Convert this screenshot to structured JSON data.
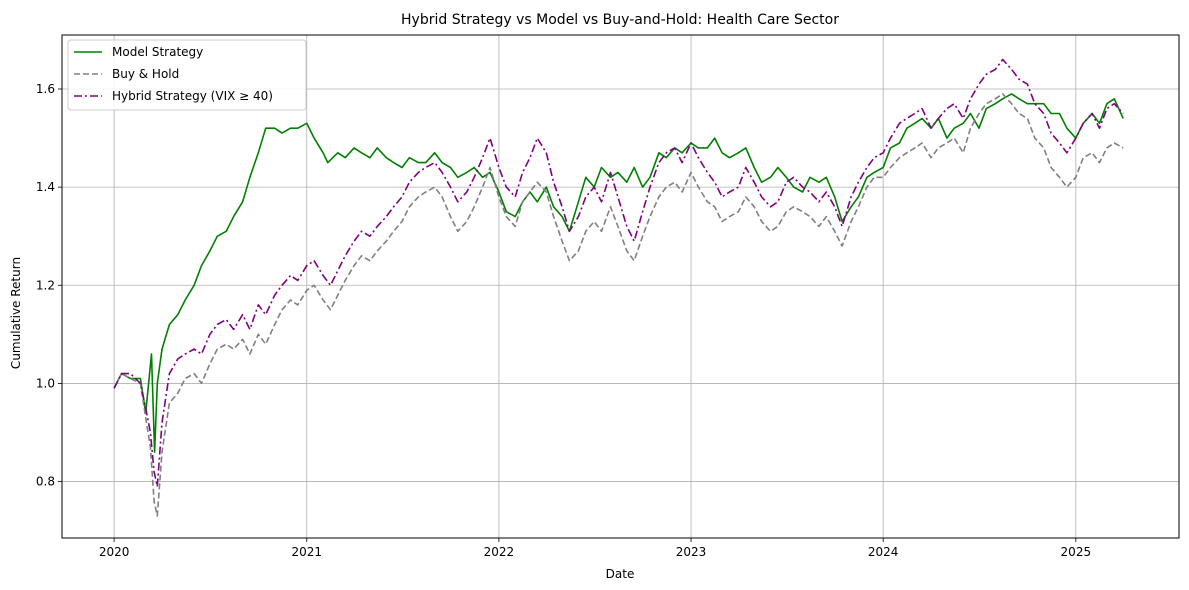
{
  "chart_data": {
    "type": "line",
    "title": "Hybrid Strategy vs Model vs Buy-and-Hold: Health Care Sector",
    "xlabel": "Date",
    "ylabel": "Cumulative Return",
    "x_type": "date",
    "xlim": [
      "2019-09-24",
      "2025-07-16"
    ],
    "ylim": [
      0.685,
      1.71
    ],
    "xticks": [
      "2020",
      "2021",
      "2022",
      "2023",
      "2024",
      "2025"
    ],
    "xtick_dates": [
      "2020-01-01",
      "2021-01-01",
      "2022-01-01",
      "2023-01-01",
      "2024-01-01",
      "2025-01-01"
    ],
    "yticks": [
      0.8,
      1.0,
      1.2,
      1.4,
      1.6
    ],
    "ytick_labels": [
      "0.8",
      "1.0",
      "1.2",
      "1.4",
      "1.6"
    ],
    "grid": true,
    "legend_position": "upper-left",
    "series": [
      {
        "name": "Model Strategy",
        "color": "#008000",
        "dash": "solid",
        "x": [
          "2020-01-01",
          "2020-01-15",
          "2020-02-01",
          "2020-02-20",
          "2020-03-01",
          "2020-03-12",
          "2020-03-18",
          "2020-03-23",
          "2020-04-01",
          "2020-04-15",
          "2020-05-01",
          "2020-05-15",
          "2020-06-01",
          "2020-06-15",
          "2020-07-01",
          "2020-07-15",
          "2020-08-01",
          "2020-08-15",
          "2020-09-01",
          "2020-09-15",
          "2020-10-01",
          "2020-10-15",
          "2020-11-01",
          "2020-11-15",
          "2020-12-01",
          "2020-12-15",
          "2021-01-01",
          "2021-01-15",
          "2021-02-01",
          "2021-02-10",
          "2021-03-01",
          "2021-03-15",
          "2021-04-01",
          "2021-04-15",
          "2021-05-01",
          "2021-05-15",
          "2021-06-01",
          "2021-06-15",
          "2021-07-01",
          "2021-07-15",
          "2021-08-01",
          "2021-08-15",
          "2021-09-01",
          "2021-09-15",
          "2021-10-01",
          "2021-10-15",
          "2021-11-01",
          "2021-11-15",
          "2021-12-01",
          "2021-12-15",
          "2022-01-01",
          "2022-01-15",
          "2022-02-01",
          "2022-02-15",
          "2022-03-01",
          "2022-03-15",
          "2022-04-01",
          "2022-04-15",
          "2022-05-01",
          "2022-05-15",
          "2022-06-01",
          "2022-06-15",
          "2022-07-01",
          "2022-07-15",
          "2022-08-01",
          "2022-08-15",
          "2022-09-01",
          "2022-09-15",
          "2022-10-01",
          "2022-10-15",
          "2022-11-01",
          "2022-11-15",
          "2022-12-01",
          "2022-12-15",
          "2023-01-01",
          "2023-01-15",
          "2023-02-01",
          "2023-02-15",
          "2023-03-01",
          "2023-03-15",
          "2023-04-01",
          "2023-04-15",
          "2023-05-01",
          "2023-05-15",
          "2023-06-01",
          "2023-06-15",
          "2023-07-01",
          "2023-07-15",
          "2023-08-01",
          "2023-08-15",
          "2023-09-01",
          "2023-09-15",
          "2023-10-01",
          "2023-10-15",
          "2023-11-01",
          "2023-11-15",
          "2023-12-01",
          "2023-12-15",
          "2024-01-01",
          "2024-01-15",
          "2024-02-01",
          "2024-02-15",
          "2024-03-01",
          "2024-03-15",
          "2024-04-01",
          "2024-04-15",
          "2024-05-01",
          "2024-05-15",
          "2024-06-01",
          "2024-06-15",
          "2024-07-01",
          "2024-07-15",
          "2024-08-01",
          "2024-08-15",
          "2024-09-01",
          "2024-09-15",
          "2024-10-01",
          "2024-10-15",
          "2024-11-01",
          "2024-11-15",
          "2024-12-01",
          "2024-12-15",
          "2025-01-01",
          "2025-01-15",
          "2025-02-01",
          "2025-02-15",
          "2025-03-01",
          "2025-03-15",
          "2025-04-01"
        ],
        "y": [
          0.99,
          1.02,
          1.01,
          1.01,
          0.94,
          1.06,
          0.86,
          1.0,
          1.07,
          1.12,
          1.14,
          1.17,
          1.2,
          1.24,
          1.27,
          1.3,
          1.31,
          1.34,
          1.37,
          1.42,
          1.47,
          1.52,
          1.52,
          1.51,
          1.52,
          1.52,
          1.53,
          1.5,
          1.47,
          1.45,
          1.47,
          1.46,
          1.48,
          1.47,
          1.46,
          1.48,
          1.46,
          1.45,
          1.44,
          1.46,
          1.45,
          1.45,
          1.47,
          1.45,
          1.44,
          1.42,
          1.43,
          1.44,
          1.42,
          1.43,
          1.39,
          1.35,
          1.34,
          1.37,
          1.39,
          1.37,
          1.4,
          1.36,
          1.34,
          1.31,
          1.37,
          1.42,
          1.4,
          1.44,
          1.42,
          1.43,
          1.41,
          1.44,
          1.4,
          1.42,
          1.47,
          1.46,
          1.48,
          1.47,
          1.49,
          1.48,
          1.48,
          1.5,
          1.47,
          1.46,
          1.47,
          1.48,
          1.44,
          1.41,
          1.42,
          1.44,
          1.42,
          1.4,
          1.39,
          1.42,
          1.41,
          1.42,
          1.38,
          1.33,
          1.36,
          1.38,
          1.42,
          1.43,
          1.44,
          1.48,
          1.49,
          1.52,
          1.53,
          1.54,
          1.52,
          1.54,
          1.5,
          1.52,
          1.53,
          1.55,
          1.52,
          1.56,
          1.57,
          1.58,
          1.59,
          1.58,
          1.57,
          1.57,
          1.57,
          1.55,
          1.55,
          1.52,
          1.5,
          1.53,
          1.55,
          1.53,
          1.57,
          1.58,
          1.54
        ]
      },
      {
        "name": "Buy & Hold",
        "color": "#808080",
        "dash": "dashed",
        "x": [
          "2020-01-01",
          "2020-01-15",
          "2020-02-01",
          "2020-02-20",
          "2020-03-01",
          "2020-03-10",
          "2020-03-17",
          "2020-03-23",
          "2020-04-01",
          "2020-04-15",
          "2020-05-01",
          "2020-05-15",
          "2020-06-01",
          "2020-06-15",
          "2020-07-01",
          "2020-07-15",
          "2020-08-01",
          "2020-08-15",
          "2020-09-01",
          "2020-09-15",
          "2020-10-01",
          "2020-10-15",
          "2020-11-01",
          "2020-11-15",
          "2020-12-01",
          "2020-12-15",
          "2021-01-01",
          "2021-01-15",
          "2021-02-01",
          "2021-02-15",
          "2021-03-01",
          "2021-03-15",
          "2021-04-01",
          "2021-04-15",
          "2021-05-01",
          "2021-05-15",
          "2021-06-01",
          "2021-06-15",
          "2021-07-01",
          "2021-07-15",
          "2021-08-01",
          "2021-08-15",
          "2021-09-01",
          "2021-09-15",
          "2021-10-01",
          "2021-10-15",
          "2021-11-01",
          "2021-11-15",
          "2021-12-01",
          "2021-12-15",
          "2022-01-01",
          "2022-01-15",
          "2022-02-01",
          "2022-02-15",
          "2022-03-01",
          "2022-03-15",
          "2022-04-01",
          "2022-04-15",
          "2022-05-01",
          "2022-05-15",
          "2022-06-01",
          "2022-06-15",
          "2022-07-01",
          "2022-07-15",
          "2022-08-01",
          "2022-08-15",
          "2022-09-01",
          "2022-09-15",
          "2022-10-01",
          "2022-10-15",
          "2022-11-01",
          "2022-11-15",
          "2022-12-01",
          "2022-12-15",
          "2023-01-01",
          "2023-01-15",
          "2023-02-01",
          "2023-02-15",
          "2023-03-01",
          "2023-03-15",
          "2023-04-01",
          "2023-04-15",
          "2023-05-01",
          "2023-05-15",
          "2023-06-01",
          "2023-06-15",
          "2023-07-01",
          "2023-07-15",
          "2023-08-01",
          "2023-08-15",
          "2023-09-01",
          "2023-09-15",
          "2023-10-01",
          "2023-10-15",
          "2023-11-01",
          "2023-11-15",
          "2023-12-01",
          "2023-12-15",
          "2024-01-01",
          "2024-01-15",
          "2024-02-01",
          "2024-02-15",
          "2024-03-01",
          "2024-03-15",
          "2024-04-01",
          "2024-04-15",
          "2024-05-01",
          "2024-05-15",
          "2024-06-01",
          "2024-06-15",
          "2024-07-01",
          "2024-07-15",
          "2024-08-01",
          "2024-08-15",
          "2024-09-01",
          "2024-09-15",
          "2024-10-01",
          "2024-10-15",
          "2024-11-01",
          "2024-11-15",
          "2024-12-01",
          "2024-12-15",
          "2025-01-01",
          "2025-01-15",
          "2025-02-01",
          "2025-02-15",
          "2025-03-01",
          "2025-03-15",
          "2025-04-01"
        ],
        "y": [
          0.99,
          1.02,
          1.01,
          1.0,
          0.93,
          0.87,
          0.76,
          0.73,
          0.86,
          0.96,
          0.98,
          1.01,
          1.02,
          1.0,
          1.04,
          1.07,
          1.08,
          1.07,
          1.09,
          1.06,
          1.1,
          1.08,
          1.12,
          1.15,
          1.17,
          1.16,
          1.19,
          1.2,
          1.17,
          1.15,
          1.18,
          1.21,
          1.24,
          1.26,
          1.25,
          1.27,
          1.29,
          1.31,
          1.33,
          1.36,
          1.38,
          1.39,
          1.4,
          1.38,
          1.34,
          1.31,
          1.33,
          1.36,
          1.4,
          1.44,
          1.38,
          1.34,
          1.32,
          1.37,
          1.39,
          1.41,
          1.39,
          1.34,
          1.29,
          1.25,
          1.27,
          1.31,
          1.33,
          1.31,
          1.36,
          1.32,
          1.27,
          1.25,
          1.3,
          1.34,
          1.38,
          1.4,
          1.41,
          1.39,
          1.43,
          1.4,
          1.37,
          1.36,
          1.33,
          1.34,
          1.35,
          1.38,
          1.36,
          1.33,
          1.31,
          1.32,
          1.35,
          1.36,
          1.35,
          1.34,
          1.32,
          1.34,
          1.31,
          1.28,
          1.33,
          1.36,
          1.4,
          1.42,
          1.42,
          1.44,
          1.46,
          1.47,
          1.48,
          1.49,
          1.46,
          1.48,
          1.49,
          1.5,
          1.47,
          1.52,
          1.55,
          1.57,
          1.58,
          1.59,
          1.57,
          1.55,
          1.54,
          1.5,
          1.48,
          1.44,
          1.42,
          1.4,
          1.42,
          1.46,
          1.47,
          1.45,
          1.48,
          1.49,
          1.48
        ]
      },
      {
        "name": "Hybrid Strategy (VIX ≥ 40)",
        "color": "#800080",
        "dash": "dashdot",
        "x": [
          "2020-01-01",
          "2020-01-15",
          "2020-02-01",
          "2020-02-20",
          "2020-03-01",
          "2020-03-10",
          "2020-03-17",
          "2020-03-23",
          "2020-04-01",
          "2020-04-15",
          "2020-05-01",
          "2020-05-15",
          "2020-06-01",
          "2020-06-15",
          "2020-07-01",
          "2020-07-15",
          "2020-08-01",
          "2020-08-15",
          "2020-09-01",
          "2020-09-15",
          "2020-10-01",
          "2020-10-15",
          "2020-11-01",
          "2020-11-15",
          "2020-12-01",
          "2020-12-15",
          "2021-01-01",
          "2021-01-15",
          "2021-02-01",
          "2021-02-15",
          "2021-03-01",
          "2021-03-15",
          "2021-04-01",
          "2021-04-15",
          "2021-05-01",
          "2021-05-15",
          "2021-06-01",
          "2021-06-15",
          "2021-07-01",
          "2021-07-15",
          "2021-08-01",
          "2021-08-15",
          "2021-09-01",
          "2021-09-15",
          "2021-10-01",
          "2021-10-15",
          "2021-11-01",
          "2021-11-15",
          "2021-12-01",
          "2021-12-15",
          "2022-01-01",
          "2022-01-15",
          "2022-02-01",
          "2022-02-15",
          "2022-03-01",
          "2022-03-15",
          "2022-04-01",
          "2022-04-15",
          "2022-05-01",
          "2022-05-15",
          "2022-06-01",
          "2022-06-15",
          "2022-07-01",
          "2022-07-15",
          "2022-08-01",
          "2022-08-15",
          "2022-09-01",
          "2022-09-15",
          "2022-10-01",
          "2022-10-15",
          "2022-11-01",
          "2022-11-15",
          "2022-12-01",
          "2022-12-15",
          "2023-01-01",
          "2023-01-15",
          "2023-02-01",
          "2023-02-15",
          "2023-03-01",
          "2023-03-15",
          "2023-04-01",
          "2023-04-15",
          "2023-05-01",
          "2023-05-15",
          "2023-06-01",
          "2023-06-15",
          "2023-07-01",
          "2023-07-15",
          "2023-08-01",
          "2023-08-15",
          "2023-09-01",
          "2023-09-15",
          "2023-10-01",
          "2023-10-15",
          "2023-11-01",
          "2023-11-15",
          "2023-12-01",
          "2023-12-15",
          "2024-01-01",
          "2024-01-15",
          "2024-02-01",
          "2024-02-15",
          "2024-03-01",
          "2024-03-15",
          "2024-04-01",
          "2024-04-15",
          "2024-05-01",
          "2024-05-15",
          "2024-06-01",
          "2024-06-15",
          "2024-07-01",
          "2024-07-15",
          "2024-08-01",
          "2024-08-15",
          "2024-09-01",
          "2024-09-15",
          "2024-10-01",
          "2024-10-15",
          "2024-11-01",
          "2024-11-15",
          "2024-12-01",
          "2024-12-15",
          "2025-01-01",
          "2025-01-15",
          "2025-02-01",
          "2025-02-15",
          "2025-03-01",
          "2025-03-15",
          "2025-04-01"
        ],
        "y": [
          0.99,
          1.02,
          1.02,
          1.0,
          0.95,
          0.9,
          0.82,
          0.79,
          0.92,
          1.02,
          1.05,
          1.06,
          1.07,
          1.06,
          1.1,
          1.12,
          1.13,
          1.11,
          1.14,
          1.11,
          1.16,
          1.14,
          1.18,
          1.2,
          1.22,
          1.21,
          1.24,
          1.25,
          1.22,
          1.2,
          1.23,
          1.26,
          1.29,
          1.31,
          1.3,
          1.32,
          1.34,
          1.36,
          1.38,
          1.41,
          1.43,
          1.44,
          1.45,
          1.43,
          1.4,
          1.37,
          1.39,
          1.42,
          1.46,
          1.5,
          1.44,
          1.4,
          1.38,
          1.43,
          1.46,
          1.5,
          1.47,
          1.41,
          1.36,
          1.31,
          1.34,
          1.38,
          1.4,
          1.37,
          1.43,
          1.38,
          1.32,
          1.29,
          1.35,
          1.4,
          1.45,
          1.47,
          1.48,
          1.45,
          1.49,
          1.46,
          1.43,
          1.41,
          1.38,
          1.39,
          1.4,
          1.44,
          1.41,
          1.38,
          1.36,
          1.37,
          1.41,
          1.42,
          1.4,
          1.39,
          1.37,
          1.39,
          1.36,
          1.32,
          1.38,
          1.41,
          1.44,
          1.46,
          1.47,
          1.5,
          1.53,
          1.54,
          1.55,
          1.56,
          1.52,
          1.54,
          1.56,
          1.57,
          1.54,
          1.58,
          1.61,
          1.63,
          1.64,
          1.66,
          1.64,
          1.62,
          1.61,
          1.57,
          1.55,
          1.51,
          1.49,
          1.47,
          1.5,
          1.53,
          1.55,
          1.52,
          1.56,
          1.57,
          1.55
        ]
      }
    ]
  }
}
